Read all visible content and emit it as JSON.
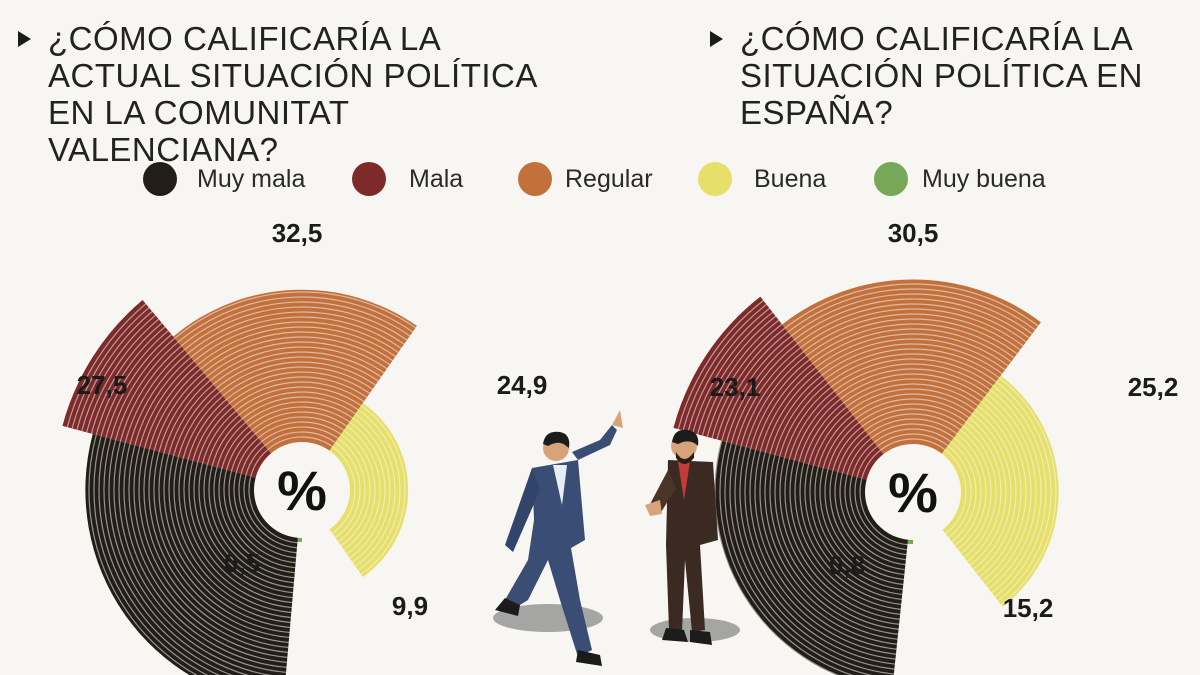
{
  "titles": {
    "left": "¿CÓMO CALIFICARÍA LA ACTUAL SITUACIÓN POLÍTICA EN LA COMUNITAT VALENCIANA?",
    "right": "¿CÓMO CALIFICARÍA LA SITUACIÓN POLÍTICA EN ESPAÑA?"
  },
  "legend": [
    {
      "label": "Muy mala",
      "color": "#221d17"
    },
    {
      "label": "Mala",
      "color": "#7d2a2a"
    },
    {
      "label": "Regular",
      "color": "#c2703c"
    },
    {
      "label": "Buena",
      "color": "#e6e06a"
    },
    {
      "label": "Muy buena",
      "color": "#76a858"
    }
  ],
  "center_symbol": "%",
  "chart_data": [
    {
      "type": "pie",
      "categories": [
        "Muy mala",
        "Mala",
        "Regular",
        "Buena",
        "Muy buena"
      ],
      "values": [
        27.5,
        32.5,
        24.9,
        9.9,
        0.5
      ],
      "value_labels": [
        "27,5",
        "32,5",
        "24,9",
        "9,9",
        "0,5"
      ],
      "title": "¿CÓMO CALIFICARÍA LA ACTUAL SITUACIÓN POLÍTICA EN LA COMUNITAT VALENCIANA?",
      "unit": "%"
    },
    {
      "type": "pie",
      "categories": [
        "Muy mala",
        "Mala",
        "Regular",
        "Buena",
        "Muy buena"
      ],
      "values": [
        23.1,
        30.5,
        25.2,
        15.2,
        0.8
      ],
      "value_labels": [
        "23,1",
        "30,5",
        "25,2",
        "15,2",
        "0,8"
      ],
      "title": "¿CÓMO CALIFICARÍA LA SITUACIÓN POLÍTICA EN ESPAÑA?",
      "unit": "%"
    }
  ]
}
